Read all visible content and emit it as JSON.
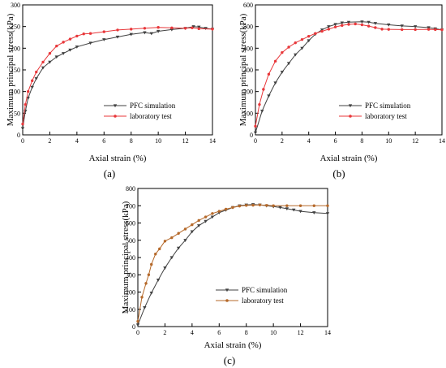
{
  "chart_data": [
    {
      "type": "line",
      "panel_label": "(a)",
      "xlabel": "Axial strain  (%)",
      "ylabel": "Maximum principal stress(kPa)",
      "xlim": [
        0,
        14
      ],
      "ylim": [
        0,
        300
      ],
      "xticks": [
        "0",
        "2",
        "4",
        "6",
        "8",
        "10",
        "12",
        "14"
      ],
      "yticks": [
        "0",
        "50",
        "100",
        "150",
        "200",
        "250",
        "300"
      ],
      "legend_position": "lower-right",
      "grid": false,
      "series": [
        {
          "name": "PFC simulation",
          "color": "#404040",
          "marker": "triangle-down",
          "points": [
            [
              0,
              15
            ],
            [
              0.2,
              55
            ],
            [
              0.4,
              85
            ],
            [
              0.7,
              110
            ],
            [
              1.0,
              130
            ],
            [
              1.5,
              155
            ],
            [
              2.0,
              168
            ],
            [
              2.5,
              180
            ],
            [
              3.0,
              188
            ],
            [
              3.5,
              196
            ],
            [
              4.0,
              203
            ],
            [
              5.0,
              212
            ],
            [
              6.0,
              220
            ],
            [
              7.0,
              226
            ],
            [
              8.0,
              232
            ],
            [
              9.0,
              236
            ],
            [
              9.5,
              234
            ],
            [
              10.0,
              239
            ],
            [
              11.0,
              243
            ],
            [
              12.0,
              246
            ],
            [
              12.6,
              250
            ],
            [
              13.0,
              249
            ],
            [
              13.5,
              246
            ],
            [
              14.0,
              244
            ]
          ]
        },
        {
          "name": "laboratory test",
          "color": "#e8373a",
          "marker": "circle",
          "points": [
            [
              0,
              25
            ],
            [
              0.2,
              70
            ],
            [
              0.4,
              100
            ],
            [
              0.7,
              125
            ],
            [
              1.0,
              145
            ],
            [
              1.5,
              168
            ],
            [
              2.0,
              188
            ],
            [
              2.5,
              205
            ],
            [
              3.0,
              214
            ],
            [
              3.5,
              221
            ],
            [
              4.0,
              228
            ],
            [
              4.5,
              233
            ],
            [
              5.0,
              234
            ],
            [
              6.0,
              238
            ],
            [
              7.0,
              242
            ],
            [
              8.0,
              244
            ],
            [
              9.0,
              246
            ],
            [
              10.0,
              248
            ],
            [
              11.0,
              247
            ],
            [
              12.0,
              246
            ],
            [
              12.5,
              247
            ],
            [
              13.0,
              245
            ],
            [
              14.0,
              244
            ]
          ]
        }
      ]
    },
    {
      "type": "line",
      "panel_label": "(b)",
      "xlabel": "Axial strain   (%)",
      "ylabel": "Maximum principal stress(kPa)",
      "xlim": [
        0,
        14
      ],
      "ylim": [
        0,
        600
      ],
      "xticks": [
        "0",
        "2",
        "4",
        "6",
        "8",
        "10",
        "12",
        "14"
      ],
      "yticks": [
        "0",
        "100",
        "200",
        "300",
        "400",
        "500",
        "600"
      ],
      "legend_position": "lower-right",
      "grid": false,
      "series": [
        {
          "name": "PFC simulation",
          "color": "#404040",
          "marker": "triangle-down",
          "points": [
            [
              0,
              10
            ],
            [
              0.5,
              110
            ],
            [
              1.0,
              180
            ],
            [
              1.5,
              240
            ],
            [
              2.0,
              290
            ],
            [
              2.5,
              330
            ],
            [
              3.0,
              370
            ],
            [
              3.5,
              400
            ],
            [
              4.0,
              435
            ],
            [
              4.5,
              465
            ],
            [
              5.0,
              485
            ],
            [
              5.5,
              500
            ],
            [
              6.0,
              510
            ],
            [
              6.5,
              517
            ],
            [
              7.0,
              520
            ],
            [
              8.0,
              522
            ],
            [
              8.5,
              520
            ],
            [
              9.0,
              515
            ],
            [
              10.0,
              508
            ],
            [
              11.0,
              503
            ],
            [
              12.0,
              500
            ],
            [
              13.0,
              495
            ],
            [
              13.5,
              490
            ],
            [
              14.0,
              485
            ]
          ]
        },
        {
          "name": "laboratory test",
          "color": "#e8373a",
          "marker": "circle",
          "points": [
            [
              0,
              40
            ],
            [
              0.3,
              140
            ],
            [
              0.6,
              210
            ],
            [
              1.0,
              280
            ],
            [
              1.5,
              340
            ],
            [
              2.0,
              380
            ],
            [
              2.5,
              405
            ],
            [
              3.0,
              425
            ],
            [
              3.5,
              440
            ],
            [
              4.0,
              455
            ],
            [
              4.5,
              468
            ],
            [
              5.0,
              478
            ],
            [
              5.5,
              488
            ],
            [
              6.0,
              498
            ],
            [
              6.5,
              505
            ],
            [
              7.0,
              510
            ],
            [
              7.5,
              512
            ],
            [
              8.0,
              508
            ],
            [
              8.5,
              502
            ],
            [
              9.0,
              495
            ],
            [
              9.5,
              488
            ],
            [
              10.0,
              487
            ],
            [
              11.0,
              486
            ],
            [
              12.0,
              486
            ],
            [
              13.0,
              487
            ],
            [
              13.5,
              486
            ],
            [
              14.0,
              485
            ]
          ]
        }
      ]
    },
    {
      "type": "line",
      "panel_label": "(c)",
      "xlabel": "Axial strain (%)",
      "ylabel": "Maximum principal stress(kPa)",
      "xlim": [
        0,
        14
      ],
      "ylim": [
        0,
        800
      ],
      "xticks": [
        "0",
        "2",
        "4",
        "6",
        "8",
        "10",
        "12",
        "14"
      ],
      "yticks": [
        "0",
        "100",
        "200",
        "300",
        "400",
        "500",
        "600",
        "700",
        "800"
      ],
      "legend_position": "lower-right",
      "grid": false,
      "series": [
        {
          "name": "PFC simulation",
          "color": "#404040",
          "marker": "triangle-down",
          "points": [
            [
              0,
              10
            ],
            [
              0.5,
              110
            ],
            [
              1.0,
              195
            ],
            [
              1.5,
              270
            ],
            [
              2.0,
              340
            ],
            [
              2.5,
              400
            ],
            [
              3.0,
              455
            ],
            [
              3.5,
              500
            ],
            [
              4.0,
              550
            ],
            [
              4.5,
              585
            ],
            [
              5.0,
              610
            ],
            [
              5.5,
              635
            ],
            [
              6.0,
              660
            ],
            [
              6.5,
              675
            ],
            [
              7.0,
              690
            ],
            [
              7.5,
              700
            ],
            [
              8.0,
              705
            ],
            [
              8.5,
              707
            ],
            [
              9.0,
              705
            ],
            [
              9.5,
              700
            ],
            [
              10.0,
              695
            ],
            [
              10.5,
              690
            ],
            [
              11.0,
              683
            ],
            [
              11.5,
              676
            ],
            [
              12.0,
              668
            ],
            [
              13.0,
              660
            ],
            [
              14.0,
              655
            ]
          ]
        },
        {
          "name": "laboratory test",
          "color": "#b5692a",
          "marker": "circle",
          "points": [
            [
              0,
              30
            ],
            [
              0.3,
              170
            ],
            [
              0.6,
              250
            ],
            [
              0.8,
              300
            ],
            [
              1.0,
              360
            ],
            [
              1.3,
              420
            ],
            [
              1.6,
              450
            ],
            [
              2.0,
              495
            ],
            [
              2.5,
              515
            ],
            [
              3.0,
              540
            ],
            [
              3.5,
              565
            ],
            [
              4.0,
              590
            ],
            [
              4.5,
              615
            ],
            [
              5.0,
              635
            ],
            [
              5.5,
              655
            ],
            [
              6.0,
              668
            ],
            [
              6.5,
              680
            ],
            [
              7.0,
              690
            ],
            [
              7.5,
              698
            ],
            [
              8.0,
              702
            ],
            [
              8.5,
              703
            ],
            [
              9.0,
              705
            ],
            [
              9.5,
              702
            ],
            [
              10.0,
              700
            ],
            [
              11.0,
              700
            ],
            [
              12.0,
              700
            ],
            [
              13.0,
              700
            ],
            [
              14.0,
              700
            ]
          ]
        }
      ]
    }
  ]
}
